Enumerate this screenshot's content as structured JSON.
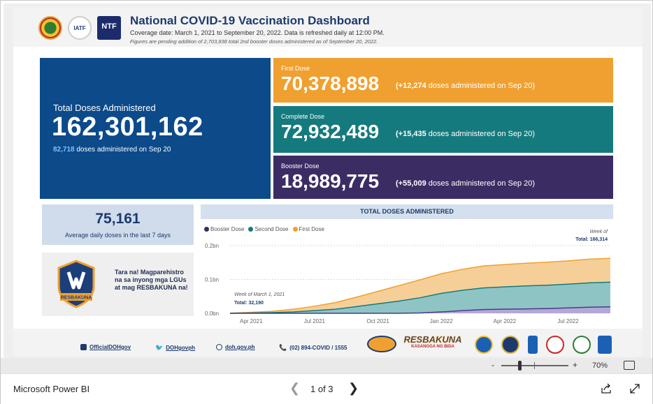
{
  "header": {
    "title": "National COVID-19 Vaccination Dashboard",
    "coverage": "Coverage date: March 1, 2021 to September 20, 2022. Data is refreshed daily at 12:00 PM.",
    "pending_note": "Figures are pending addition of 2,703,838 total 2nd booster doses administered as of September 20, 2022.",
    "logo2_text": "IATF",
    "logo3_text": "NTF"
  },
  "total": {
    "label": "Total Doses Administered",
    "value": "162,301,162",
    "daily": "82,718",
    "daily_suffix": " doses administered on Sep 20"
  },
  "first_dose": {
    "label": "First Dose",
    "value": "70,378,898",
    "delta": "(+12,274",
    "delta_suffix": " doses administered on Sep 20)",
    "color": "#f0a030"
  },
  "complete_dose": {
    "label": "Complete Dose",
    "value": "72,932,489",
    "delta": "(+15,435",
    "delta_suffix": " doses administered on Sep 20)",
    "color": "#157a7e"
  },
  "booster_dose": {
    "label": "Booster Dose",
    "value": "18,989,775",
    "delta": "(+55,009",
    "delta_suffix": " doses administered on Sep 20)",
    "color": "#3c2c64"
  },
  "average": {
    "value": "75,161",
    "label": "Average daily doses in the last 7 days"
  },
  "promo": {
    "text": "Tara na! Magparehistro na sa inyong mga LGUs at mag RESBAKUNA na!",
    "badge_text": "RESBAKUNA"
  },
  "chart_data": {
    "type": "area",
    "title": "TOTAL DOSES ADMINISTERED",
    "legend": [
      "Booster Dose",
      "Second Dose",
      "First Dose"
    ],
    "colors": {
      "booster": "#7b68b5",
      "second": "#157a7e",
      "first": "#f0a030"
    },
    "yticks": [
      "0.2bn",
      "0.1bn",
      "0.0bn"
    ],
    "ylim": [
      0,
      0.2
    ],
    "xticks": [
      "Apr 2021",
      "Jul 2021",
      "Oct 2021",
      "Jan 2022",
      "Apr 2022",
      "Jul 2022"
    ],
    "x": [
      "2021-03",
      "2021-04",
      "2021-05",
      "2021-06",
      "2021-07",
      "2021-08",
      "2021-09",
      "2021-10",
      "2021-11",
      "2021-12",
      "2022-01",
      "2022-02",
      "2022-03",
      "2022-04",
      "2022-05",
      "2022-06",
      "2022-07",
      "2022-08",
      "2022-09"
    ],
    "series": [
      {
        "name": "Booster Dose",
        "values": [
          0,
          0,
          0,
          0,
          0,
          0,
          0,
          0,
          0,
          0.001,
          0.004,
          0.008,
          0.011,
          0.012,
          0.013,
          0.014,
          0.016,
          0.018,
          0.019
        ]
      },
      {
        "name": "Second Dose",
        "values": [
          0,
          0.001,
          0.002,
          0.004,
          0.008,
          0.012,
          0.02,
          0.028,
          0.036,
          0.045,
          0.055,
          0.06,
          0.064,
          0.066,
          0.068,
          0.069,
          0.07,
          0.072,
          0.073
        ]
      },
      {
        "name": "First Dose",
        "values": [
          0.0002,
          0.002,
          0.004,
          0.008,
          0.013,
          0.02,
          0.028,
          0.037,
          0.046,
          0.053,
          0.058,
          0.062,
          0.065,
          0.066,
          0.067,
          0.068,
          0.069,
          0.07,
          0.0704
        ]
      }
    ],
    "annotation_start": {
      "label": "Week of March 1, 2021",
      "total": "Total: 32,190"
    },
    "annotation_end": {
      "label": "Week of",
      "total": "Total: 166,314"
    }
  },
  "footer": {
    "facebook": "OfficialDOHgov",
    "twitter": "DOHgovph",
    "website": "doh.gov.ph",
    "phone": "(02) 894-COVID / 1555",
    "resbakuna": "RESBAKUNA",
    "resbakuna_sub": "KASANGGA NG BIDA"
  },
  "zoom": {
    "minus": "-",
    "plus": "+",
    "level": "70%",
    "fraction": 0.27
  },
  "bottom": {
    "app": "Microsoft Power BI",
    "page": "1 of 3",
    "prev": "❮",
    "next": "❯"
  }
}
